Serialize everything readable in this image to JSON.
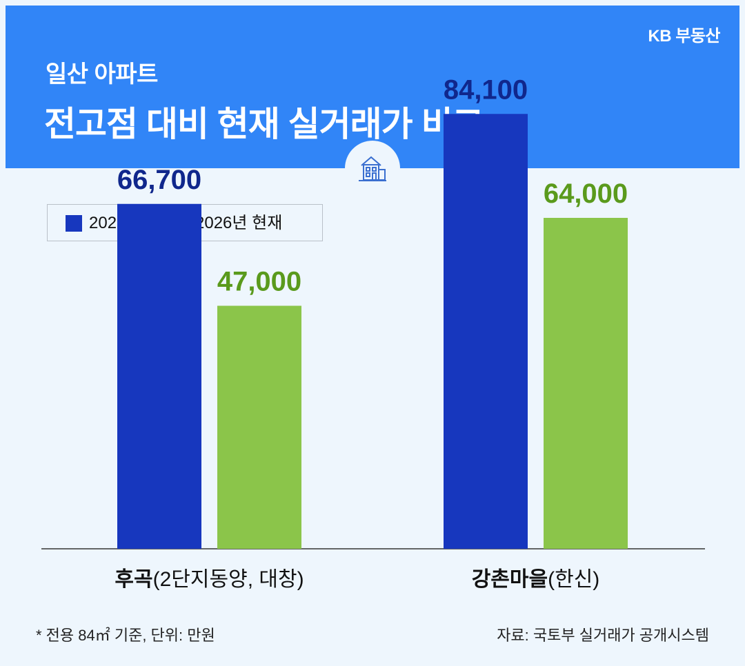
{
  "header": {
    "brand": "KB 부동산",
    "subtitle": "일산 아파트",
    "title": "전고점 대비 현재 실거래가 비교",
    "icon": "house-icon"
  },
  "colors": {
    "header_bg": "#3185f7",
    "series_2022": "#1737be",
    "series_2026": "#8bc54a",
    "label_2022": "#10278c",
    "label_2026": "#5a9a1c"
  },
  "chart_data": {
    "type": "bar",
    "legend_position": "top-left",
    "categories": [
      {
        "name": "후곡",
        "detail": "(2단지동양, 대창)"
      },
      {
        "name": "강촌마을",
        "detail": "(한신)"
      }
    ],
    "series": [
      {
        "name": "2022년",
        "values": [
          66700,
          84100
        ],
        "labels": [
          "66,700",
          "84,100"
        ]
      },
      {
        "name": "2026년 현재",
        "values": [
          47000,
          64000
        ],
        "labels": [
          "47,000",
          "64,000"
        ]
      }
    ],
    "ylim": [
      0,
      100000
    ]
  },
  "footnote": "* 전용 84㎡ 기준, 단위: 만원",
  "source": "자료: 국토부 실거래가 공개시스템"
}
